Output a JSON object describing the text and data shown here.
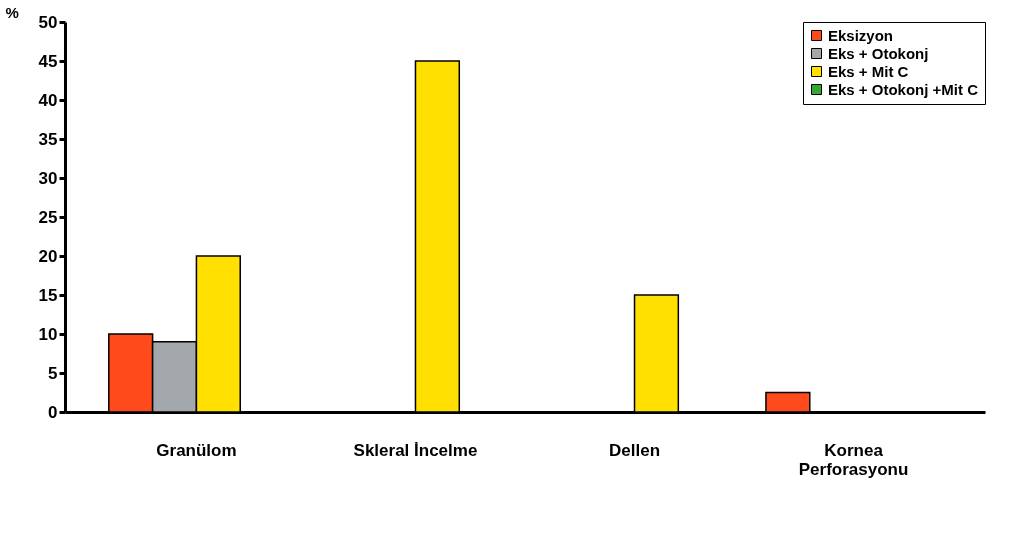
{
  "chart_data": {
    "type": "bar",
    "ylabel": "%",
    "categories": [
      "Granülom",
      "Skleral İncelme",
      "Dellen",
      "Kornea Perforasyonu"
    ],
    "series": [
      {
        "name": "Eksizyon",
        "color": "#ff4a1c",
        "values": [
          10,
          null,
          null,
          2.5
        ]
      },
      {
        "name": "Eks + Otokonj",
        "color": "#a3a8ad",
        "values": [
          9,
          null,
          null,
          null
        ]
      },
      {
        "name": "Eks + Mit C",
        "color": "#ffe000",
        "values": [
          20,
          45,
          15,
          null
        ]
      },
      {
        "name": "Eks + Otokonj +Mit C",
        "color": "#33a833",
        "values": [
          null,
          null,
          null,
          null
        ]
      }
    ],
    "ylim": [
      0,
      50
    ],
    "yticks": [
      0,
      5,
      10,
      15,
      20,
      25,
      30,
      35,
      40,
      45,
      50
    ],
    "grid": false,
    "legend": "top right"
  }
}
